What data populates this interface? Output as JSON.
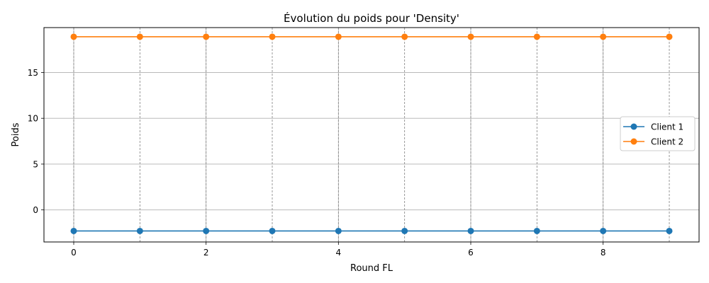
{
  "chart_data": {
    "type": "line",
    "title": "Évolution du poids pour 'Density'",
    "xlabel": "Round FL",
    "ylabel": "Poids",
    "xlim": [
      -0.45,
      9.45
    ],
    "ylim": [
      -3.5,
      19.9
    ],
    "x": [
      0,
      1,
      2,
      3,
      4,
      5,
      6,
      7,
      8,
      9
    ],
    "x_ticks": [
      0,
      2,
      4,
      6,
      8
    ],
    "y_ticks": [
      0,
      5,
      10,
      15
    ],
    "vertical_dashed_lines": [
      0,
      1,
      2,
      3,
      4,
      5,
      6,
      7,
      8,
      9
    ],
    "grid": true,
    "legend_position": "right",
    "series": [
      {
        "name": "Client 1",
        "color": "#1f77b4",
        "marker": "circle",
        "values": [
          -2.3,
          -2.3,
          -2.3,
          -2.3,
          -2.3,
          -2.3,
          -2.3,
          -2.3,
          -2.3,
          -2.3
        ]
      },
      {
        "name": "Client 2",
        "color": "#ff7f0e",
        "marker": "circle",
        "values": [
          18.9,
          18.9,
          18.9,
          18.9,
          18.9,
          18.9,
          18.9,
          18.9,
          18.9,
          18.9
        ]
      }
    ]
  }
}
